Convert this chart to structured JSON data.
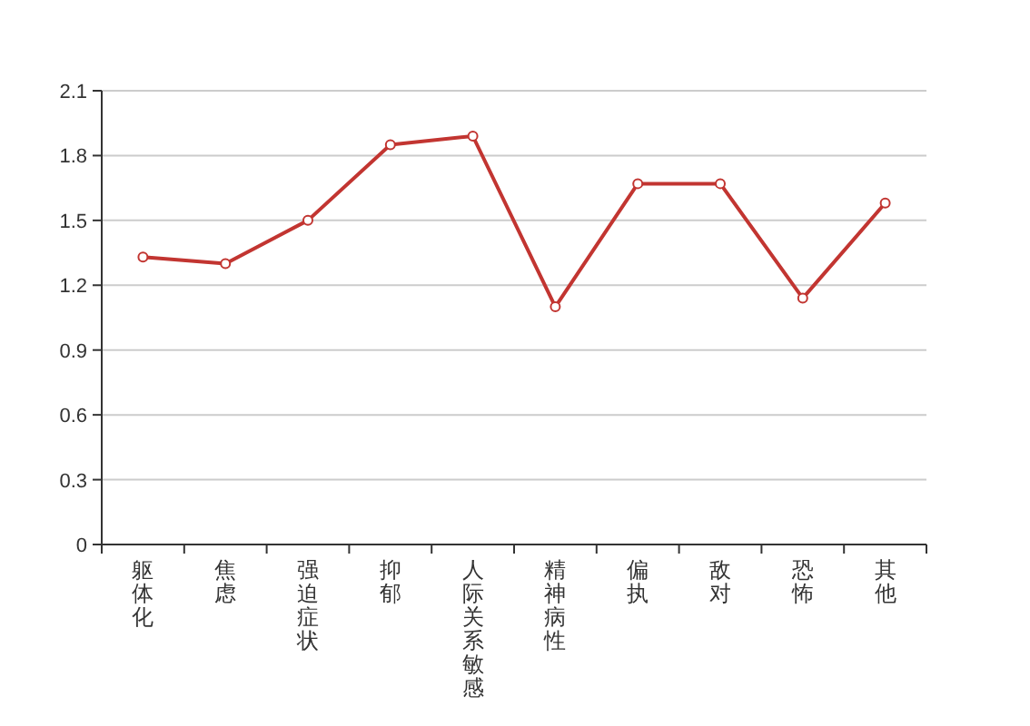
{
  "chart_data": {
    "type": "line",
    "categories": [
      "躯体化",
      "焦虑",
      "强迫症状",
      "抑郁",
      "人际关系敏感",
      "精神病性",
      "偏执",
      "敌对",
      "恐怖",
      "其他"
    ],
    "series": [
      {
        "color": "#c23531",
        "values": [
          1.33,
          1.3,
          1.5,
          1.85,
          1.89,
          1.1,
          1.67,
          1.67,
          1.14,
          1.58
        ]
      }
    ],
    "ylim": [
      0,
      2.1
    ],
    "yticks": [
      0,
      0.3,
      0.6,
      0.9,
      1.2,
      1.5,
      1.8,
      2.1
    ],
    "grid": "y",
    "marker": "circle",
    "line_style": "solid"
  }
}
